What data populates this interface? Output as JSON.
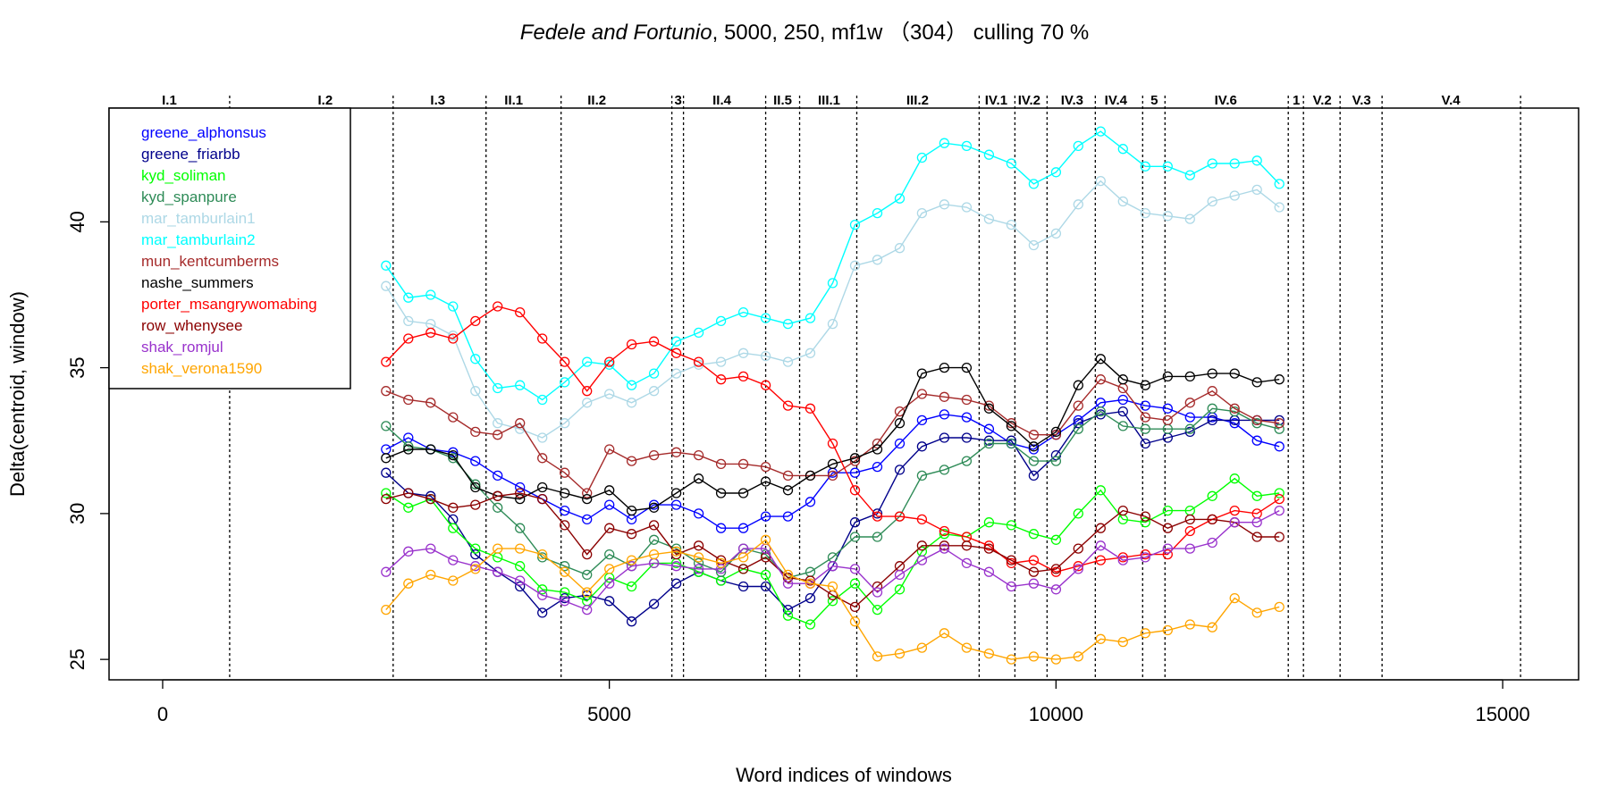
{
  "chart_data": {
    "type": "line",
    "title": {
      "italic": "Fedele and Fortunio",
      "rest": ", 5000, 250, mf1w （304） culling 70 %"
    },
    "xlabel": "Word indices of windows",
    "ylabel": "Delta(centroid, window)",
    "xlim": [
      -600,
      15850
    ],
    "ylim": [
      24.3,
      43.9
    ],
    "xticks": [
      0,
      5000,
      10000,
      15000
    ],
    "xtick_labels": [
      "0",
      "5000",
      "10000",
      "15000"
    ],
    "yticks": [
      25,
      30,
      35,
      40
    ],
    "ytick_labels": [
      "25",
      "30",
      "35",
      "40"
    ],
    "grid": false,
    "legend_position": "top-left",
    "boundaries": [
      750,
      2580,
      3620,
      4460,
      5700,
      5830,
      6750,
      7130,
      7770,
      9140,
      9540,
      9900,
      10440,
      10970,
      11220,
      12600,
      12770,
      13180,
      13650,
      15200
    ],
    "sections": [
      {
        "label": "I.1",
        "x": 75
      },
      {
        "label": "I.2",
        "x": 1820
      },
      {
        "label": "I.3",
        "x": 3080
      },
      {
        "label": "II.1",
        "x": 3930
      },
      {
        "label": "II.2",
        "x": 4860
      },
      {
        "label": "3",
        "x": 5770
      },
      {
        "label": "II.4",
        "x": 6260
      },
      {
        "label": "II.5",
        "x": 6940
      },
      {
        "label": "III.1",
        "x": 7460
      },
      {
        "label": "III.2",
        "x": 8450
      },
      {
        "label": "IV.1",
        "x": 9330
      },
      {
        "label": "IV.2",
        "x": 9700
      },
      {
        "label": "IV.3",
        "x": 10180
      },
      {
        "label": "IV.4",
        "x": 10670
      },
      {
        "label": "5",
        "x": 11100
      },
      {
        "label": "IV.6",
        "x": 11900
      },
      {
        "label": "1",
        "x": 12690
      },
      {
        "label": "V.2",
        "x": 12980
      },
      {
        "label": "V.3",
        "x": 13420
      },
      {
        "label": "V.4",
        "x": 14420
      }
    ],
    "x": [
      2500,
      2750,
      3000,
      3250,
      3500,
      3750,
      4000,
      4250,
      4500,
      4750,
      5000,
      5250,
      5500,
      5750,
      6000,
      6250,
      6500,
      6750,
      7000,
      7250,
      7500,
      7750,
      8000,
      8250,
      8500,
      8750,
      9000,
      9250,
      9500,
      9750,
      10000,
      10250,
      10500,
      10750,
      11000,
      11250,
      11500,
      11750,
      12000,
      12250,
      12500
    ],
    "series": [
      {
        "name": "greene_alphonsus",
        "color": "#0000ff",
        "values": [
          32.2,
          32.6,
          32.2,
          32.1,
          31.8,
          31.3,
          30.9,
          30.5,
          30.1,
          29.8,
          30.3,
          29.8,
          30.3,
          30.3,
          30.0,
          29.5,
          29.5,
          29.9,
          29.9,
          30.4,
          31.4,
          31.4,
          31.6,
          32.4,
          33.2,
          33.4,
          33.3,
          32.9,
          32.4,
          32.2,
          32.7,
          33.2,
          33.8,
          33.9,
          33.7,
          33.6,
          33.3,
          33.3,
          33.1,
          32.5,
          32.3
        ]
      },
      {
        "name": "greene_friarbb",
        "color": "#00008b",
        "values": [
          31.4,
          30.7,
          30.6,
          29.8,
          28.6,
          28.0,
          27.5,
          26.6,
          27.1,
          27.2,
          27.0,
          26.3,
          26.9,
          27.6,
          28.0,
          27.7,
          27.5,
          27.5,
          26.7,
          27.1,
          28.2,
          29.7,
          30.0,
          31.5,
          32.3,
          32.6,
          32.6,
          32.5,
          32.5,
          31.3,
          32.0,
          33.1,
          33.4,
          33.5,
          32.4,
          32.6,
          32.8,
          33.2,
          33.2,
          33.2,
          33.2
        ]
      },
      {
        "name": "kyd_soliman",
        "color": "#00ff00",
        "values": [
          30.7,
          30.2,
          30.5,
          29.5,
          28.8,
          28.5,
          28.2,
          27.4,
          27.3,
          27.0,
          27.8,
          27.5,
          28.3,
          28.3,
          28.0,
          27.7,
          28.1,
          27.9,
          26.5,
          26.2,
          27.0,
          27.6,
          26.7,
          27.4,
          28.7,
          29.3,
          29.2,
          29.7,
          29.6,
          29.3,
          29.1,
          30.0,
          30.8,
          29.8,
          29.7,
          30.1,
          30.1,
          30.6,
          31.2,
          30.6,
          30.7
        ]
      },
      {
        "name": "kyd_spanpure",
        "color": "#2e8b57",
        "values": [
          33.0,
          32.3,
          32.2,
          31.9,
          31.0,
          30.2,
          29.5,
          28.5,
          28.2,
          27.9,
          28.6,
          28.2,
          29.1,
          28.8,
          28.3,
          28.0,
          28.8,
          28.6,
          27.8,
          28.0,
          28.5,
          29.2,
          29.2,
          29.9,
          31.3,
          31.5,
          31.8,
          32.4,
          32.4,
          31.8,
          31.8,
          32.9,
          33.5,
          33.0,
          32.9,
          32.9,
          32.9,
          33.6,
          33.5,
          33.1,
          32.9
        ]
      },
      {
        "name": "mar_tamburlain1",
        "color": "#add8e6",
        "values": [
          37.8,
          36.6,
          36.5,
          36.1,
          34.2,
          33.1,
          32.9,
          32.6,
          33.1,
          33.8,
          34.1,
          33.8,
          34.2,
          34.8,
          35.1,
          35.2,
          35.5,
          35.4,
          35.2,
          35.5,
          36.5,
          38.5,
          38.7,
          39.1,
          40.3,
          40.6,
          40.5,
          40.1,
          39.9,
          39.2,
          39.6,
          40.6,
          41.4,
          40.7,
          40.3,
          40.2,
          40.1,
          40.7,
          40.9,
          41.1,
          40.5
        ]
      },
      {
        "name": "mar_tamburlain2",
        "color": "#00ffff",
        "values": [
          38.5,
          37.4,
          37.5,
          37.1,
          35.3,
          34.3,
          34.4,
          33.9,
          34.5,
          35.2,
          35.1,
          34.4,
          34.8,
          35.9,
          36.2,
          36.6,
          36.9,
          36.7,
          36.5,
          36.7,
          37.9,
          39.9,
          40.3,
          40.8,
          42.2,
          42.7,
          42.6,
          42.3,
          42.0,
          41.3,
          41.7,
          42.6,
          43.1,
          42.5,
          41.9,
          41.9,
          41.6,
          42.0,
          42.0,
          42.1,
          41.3
        ]
      },
      {
        "name": "mun_kentcumberms",
        "color": "#a52a2a",
        "values": [
          34.2,
          33.9,
          33.8,
          33.3,
          32.8,
          32.7,
          33.1,
          31.9,
          31.4,
          30.7,
          32.2,
          31.8,
          32.0,
          32.1,
          32.0,
          31.7,
          31.7,
          31.6,
          31.3,
          31.3,
          31.3,
          31.8,
          32.4,
          33.5,
          34.1,
          34.0,
          33.9,
          33.7,
          33.1,
          32.7,
          32.7,
          33.7,
          34.6,
          34.3,
          33.3,
          33.2,
          33.8,
          34.2,
          33.6,
          33.2,
          33.1
        ]
      },
      {
        "name": "nashe_summers",
        "color": "#000000",
        "values": [
          31.9,
          32.2,
          32.2,
          32.0,
          30.9,
          30.6,
          30.5,
          30.9,
          30.7,
          30.5,
          30.8,
          30.1,
          30.2,
          30.7,
          31.2,
          30.7,
          30.7,
          31.1,
          30.8,
          31.3,
          31.7,
          31.9,
          32.2,
          33.1,
          34.8,
          35.0,
          35.0,
          33.6,
          33.0,
          32.3,
          32.8,
          34.4,
          35.3,
          34.6,
          34.4,
          34.7,
          34.7,
          34.8,
          34.8,
          34.5,
          34.6
        ]
      },
      {
        "name": "porter_msangrywomabing",
        "color": "#ff0000",
        "values": [
          35.2,
          36.0,
          36.2,
          36.0,
          36.6,
          37.1,
          36.9,
          36.0,
          35.2,
          34.2,
          35.2,
          35.8,
          35.9,
          35.5,
          35.2,
          34.6,
          34.7,
          34.4,
          33.7,
          33.6,
          32.4,
          30.8,
          29.9,
          29.9,
          29.8,
          29.4,
          29.2,
          28.9,
          28.3,
          28.4,
          28.0,
          28.2,
          28.4,
          28.5,
          28.6,
          28.6,
          29.4,
          29.8,
          30.1,
          30.0,
          30.5
        ]
      },
      {
        "name": "row_whenysee",
        "color": "#8b0000",
        "values": [
          30.5,
          30.7,
          30.5,
          30.2,
          30.3,
          30.6,
          30.7,
          30.5,
          29.6,
          28.6,
          29.5,
          29.3,
          29.6,
          28.6,
          28.9,
          28.4,
          28.1,
          28.5,
          27.8,
          27.7,
          27.2,
          26.8,
          27.5,
          28.2,
          28.9,
          28.9,
          28.9,
          28.8,
          28.4,
          28.0,
          28.1,
          28.8,
          29.5,
          30.1,
          29.9,
          29.5,
          29.8,
          29.8,
          29.7,
          29.2,
          29.2
        ]
      },
      {
        "name": "shak_romjul",
        "color": "#9932cc",
        "values": [
          28.0,
          28.7,
          28.8,
          28.4,
          28.2,
          28.0,
          27.7,
          27.2,
          27.0,
          26.7,
          27.6,
          28.2,
          28.3,
          28.2,
          28.1,
          28.1,
          28.8,
          28.8,
          27.6,
          27.6,
          28.2,
          28.1,
          27.3,
          27.9,
          28.4,
          28.8,
          28.3,
          28.0,
          27.5,
          27.6,
          27.4,
          28.1,
          28.9,
          28.4,
          28.5,
          28.8,
          28.8,
          29.0,
          29.7,
          29.7,
          30.1
        ]
      },
      {
        "name": "shak_verona1590",
        "color": "#ffa500",
        "values": [
          26.7,
          27.6,
          27.9,
          27.7,
          28.1,
          28.8,
          28.8,
          28.6,
          28.0,
          27.3,
          28.1,
          28.4,
          28.6,
          28.7,
          28.5,
          28.3,
          28.5,
          29.1,
          27.9,
          27.6,
          27.5,
          26.3,
          25.1,
          25.2,
          25.4,
          25.9,
          25.4,
          25.2,
          25.0,
          25.1,
          25.0,
          25.1,
          25.7,
          25.6,
          25.9,
          26.0,
          26.2,
          26.1,
          27.1,
          26.6,
          26.8
        ]
      }
    ]
  }
}
